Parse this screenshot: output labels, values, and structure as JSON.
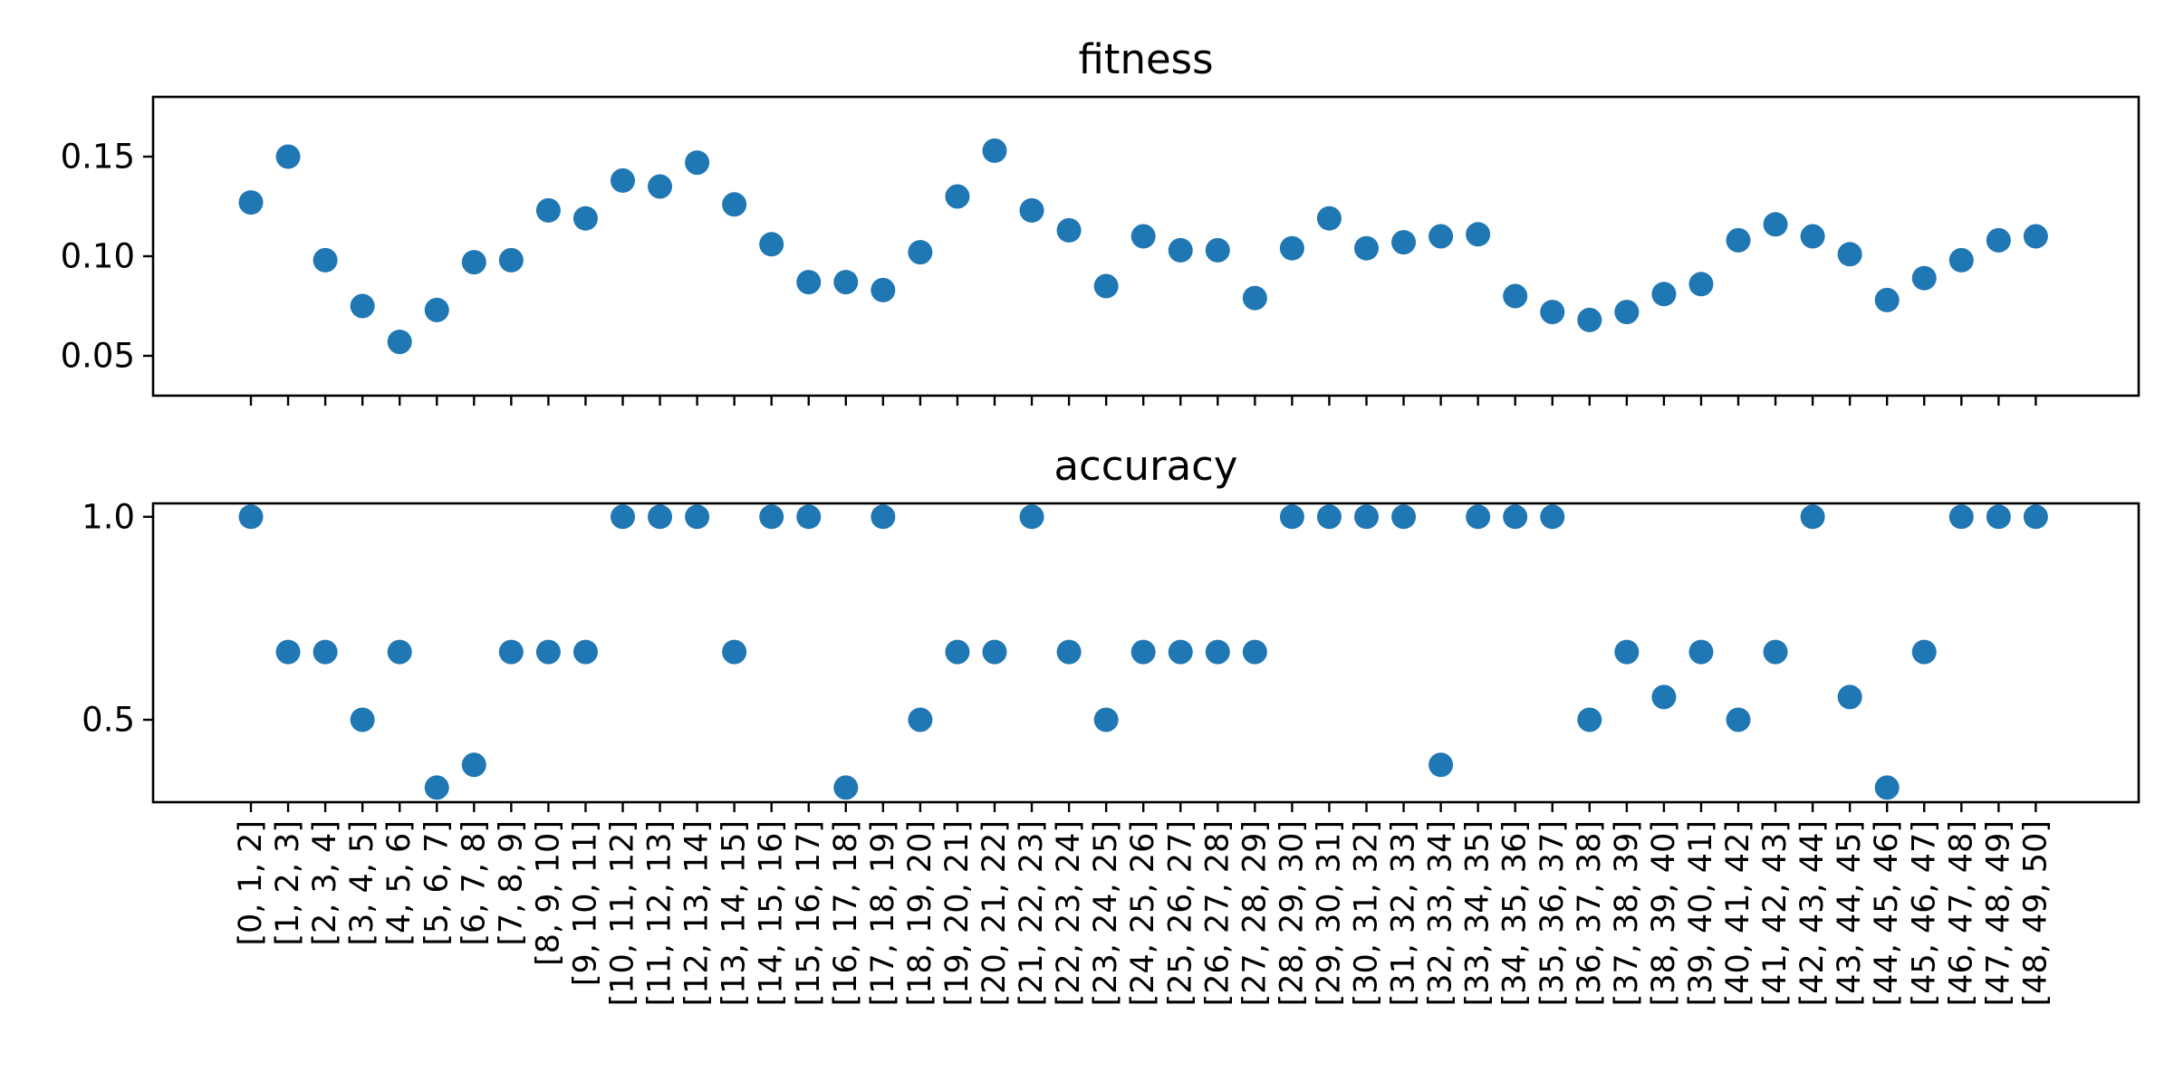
{
  "colors": {
    "marker": "#1f77b4",
    "axes": "#000000",
    "background": "#ffffff"
  },
  "chart_data": [
    {
      "type": "scatter",
      "title": "fitness",
      "xlabel": "",
      "ylabel": "",
      "ylim": [
        0.03,
        0.18
      ],
      "yticks": [
        0.05,
        0.1,
        0.15
      ],
      "ytick_labels": [
        "0.05",
        "0.10",
        "0.15"
      ],
      "grid": false,
      "shared_x": true,
      "show_x_tick_labels": false,
      "categories": [
        "[0, 1, 2]",
        "[1, 2, 3]",
        "[2, 3, 4]",
        "[3, 4, 5]",
        "[4, 5, 6]",
        "[5, 6, 7]",
        "[6, 7, 8]",
        "[7, 8, 9]",
        "[8, 9, 10]",
        "[9, 10, 11]",
        "[10, 11, 12]",
        "[11, 12, 13]",
        "[12, 13, 14]",
        "[13, 14, 15]",
        "[14, 15, 16]",
        "[15, 16, 17]",
        "[16, 17, 18]",
        "[17, 18, 19]",
        "[18, 19, 20]",
        "[19, 20, 21]",
        "[20, 21, 22]",
        "[21, 22, 23]",
        "[22, 23, 24]",
        "[23, 24, 25]",
        "[24, 25, 26]",
        "[25, 26, 27]",
        "[26, 27, 28]",
        "[27, 28, 29]",
        "[28, 29, 30]",
        "[29, 30, 31]",
        "[30, 31, 32]",
        "[31, 32, 33]",
        "[32, 33, 34]",
        "[33, 34, 35]",
        "[34, 35, 36]",
        "[35, 36, 37]",
        "[36, 37, 38]",
        "[37, 38, 39]",
        "[38, 39, 40]",
        "[39, 40, 41]",
        "[40, 41, 42]",
        "[41, 42, 43]",
        "[42, 43, 44]",
        "[43, 44, 45]",
        "[44, 45, 46]",
        "[45, 46, 47]",
        "[46, 47, 48]",
        "[47, 48, 49]",
        "[48, 49, 50]"
      ],
      "values": [
        0.127,
        0.15,
        0.098,
        0.075,
        0.057,
        0.073,
        0.097,
        0.098,
        0.123,
        0.119,
        0.138,
        0.135,
        0.147,
        0.126,
        0.106,
        0.087,
        0.087,
        0.083,
        0.102,
        0.13,
        0.153,
        0.123,
        0.113,
        0.085,
        0.11,
        0.103,
        0.103,
        0.079,
        0.104,
        0.119,
        0.104,
        0.107,
        0.11,
        0.111,
        0.08,
        0.072,
        0.068,
        0.072,
        0.081,
        0.086,
        0.108,
        0.116,
        0.11,
        0.101,
        0.078,
        0.089,
        0.098,
        0.108,
        0.11
      ]
    },
    {
      "type": "scatter",
      "title": "accuracy",
      "xlabel": "",
      "ylabel": "",
      "ylim": [
        0.297,
        1.033
      ],
      "yticks": [
        0.5,
        1.0
      ],
      "ytick_labels": [
        "0.5",
        "1.0"
      ],
      "grid": false,
      "shared_x": true,
      "show_x_tick_labels": true,
      "categories": [
        "[0, 1, 2]",
        "[1, 2, 3]",
        "[2, 3, 4]",
        "[3, 4, 5]",
        "[4, 5, 6]",
        "[5, 6, 7]",
        "[6, 7, 8]",
        "[7, 8, 9]",
        "[8, 9, 10]",
        "[9, 10, 11]",
        "[10, 11, 12]",
        "[11, 12, 13]",
        "[12, 13, 14]",
        "[13, 14, 15]",
        "[14, 15, 16]",
        "[15, 16, 17]",
        "[16, 17, 18]",
        "[17, 18, 19]",
        "[18, 19, 20]",
        "[19, 20, 21]",
        "[20, 21, 22]",
        "[21, 22, 23]",
        "[22, 23, 24]",
        "[23, 24, 25]",
        "[24, 25, 26]",
        "[25, 26, 27]",
        "[26, 27, 28]",
        "[27, 28, 29]",
        "[28, 29, 30]",
        "[29, 30, 31]",
        "[30, 31, 32]",
        "[31, 32, 33]",
        "[32, 33, 34]",
        "[33, 34, 35]",
        "[34, 35, 36]",
        "[35, 36, 37]",
        "[36, 37, 38]",
        "[37, 38, 39]",
        "[38, 39, 40]",
        "[39, 40, 41]",
        "[40, 41, 42]",
        "[41, 42, 43]",
        "[42, 43, 44]",
        "[43, 44, 45]",
        "[44, 45, 46]",
        "[45, 46, 47]",
        "[46, 47, 48]",
        "[47, 48, 49]",
        "[48, 49, 50]"
      ],
      "values": [
        1.0,
        0.667,
        0.667,
        0.5,
        0.667,
        0.333,
        0.389,
        0.667,
        0.667,
        0.667,
        1.0,
        1.0,
        1.0,
        0.667,
        1.0,
        1.0,
        0.333,
        1.0,
        0.5,
        0.667,
        0.667,
        1.0,
        0.667,
        0.5,
        0.667,
        0.667,
        0.667,
        0.667,
        1.0,
        1.0,
        1.0,
        1.0,
        0.389,
        1.0,
        1.0,
        1.0,
        0.5,
        0.667,
        0.556,
        0.667,
        0.5,
        0.667,
        1.0,
        0.556,
        0.333,
        0.667,
        1.0,
        1.0,
        1.0
      ]
    }
  ]
}
